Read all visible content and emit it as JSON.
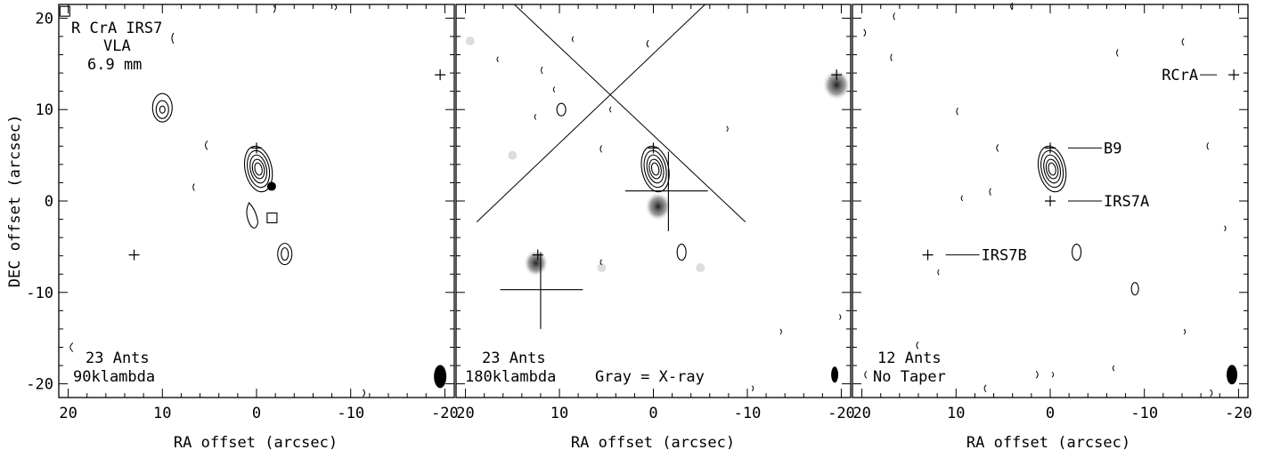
{
  "chart_data": [
    {
      "type": "contour-map",
      "xlabel": "RA offset (arcsec)",
      "ylabel": "DEC offset (arcsec)",
      "xlim": [
        21,
        -21
      ],
      "ylim": [
        -21.5,
        21.5
      ],
      "xticks": [
        20,
        10,
        0,
        -10,
        -20
      ],
      "yticks": [
        20,
        10,
        0,
        -10,
        -20
      ],
      "annotations_top": [
        "R CrA IRS7",
        "VLA",
        "6.9 mm"
      ],
      "annotations_bottom": [
        "23 Ants",
        "90klambda"
      ],
      "crosses": [
        [
          0,
          5.8
        ],
        [
          -19.5,
          13.8
        ],
        [
          13,
          -5.9
        ]
      ],
      "filled_circle": [
        -1.6,
        1.6
      ],
      "squares": [
        [
          -1.6,
          -1.8
        ],
        [
          20.4,
          20.8
        ]
      ],
      "contour_centers": [
        [
          0,
          4
        ],
        [
          10,
          10
        ],
        [
          -3,
          -6
        ]
      ]
    },
    {
      "type": "contour-map",
      "xlabel": "RA offset (arcsec)",
      "xlim": [
        21,
        -21
      ],
      "ylim": [
        -21.5,
        21.5
      ],
      "xticks": [
        20,
        10,
        0,
        -10,
        -20
      ],
      "annotations_bottom": [
        "23 Ants",
        "180klambda"
      ],
      "gray_label": "Gray = X-ray",
      "crosses": [
        [
          0,
          5.8
        ],
        [
          -19.5,
          13.8
        ],
        [
          12.3,
          -5.9
        ]
      ],
      "xray_sources": [
        [
          -19.5,
          12.7
        ],
        [
          -0.5,
          -0.6
        ],
        [
          12.5,
          -6.8
        ]
      ],
      "contour_centers": [
        [
          0,
          4
        ],
        [
          10,
          10
        ],
        [
          -3,
          -6
        ]
      ]
    },
    {
      "type": "contour-map",
      "xlabel": "RA offset (arcsec)",
      "xlim": [
        21,
        -21
      ],
      "ylim": [
        -21.5,
        21.5
      ],
      "xticks": [
        20,
        10,
        0,
        -10,
        -20
      ],
      "annotations_bottom": [
        "12 Ants",
        "No Taper"
      ],
      "source_labels": [
        {
          "name": "RCrA",
          "x": -19.5,
          "y": 13.8
        },
        {
          "name": "B9",
          "x": 0,
          "y": 5.8
        },
        {
          "name": "IRS7A",
          "x": 0,
          "y": 0
        },
        {
          "name": "IRS7B",
          "x": 13,
          "y": -5.9
        }
      ],
      "contour_centers": [
        [
          0,
          4
        ],
        [
          3,
          -5.5
        ],
        [
          -9,
          -9.5
        ]
      ]
    }
  ]
}
